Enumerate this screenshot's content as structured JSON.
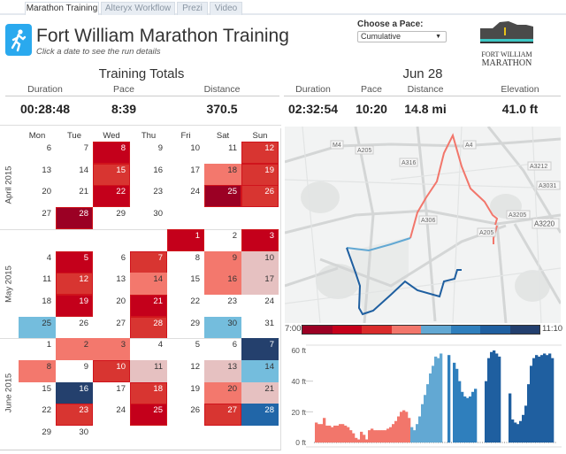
{
  "tabs": [
    {
      "label": "Marathon Training",
      "active": true
    },
    {
      "label": "Alteryx Workflow",
      "active": false
    },
    {
      "label": "Prezi",
      "active": false
    },
    {
      "label": "Video",
      "active": false
    }
  ],
  "header": {
    "icon": "runner-icon",
    "title": "Fort William Marathon Training",
    "subtitle": "Click a date to see the run details",
    "pace_label": "Choose a Pace:",
    "pace_value": "Cumulative",
    "logo_text": [
      "Fort William",
      "Marathon"
    ]
  },
  "totals": {
    "title": "Training Totals",
    "labels": [
      "Duration",
      "Pace",
      "Distance"
    ],
    "values": [
      "00:28:48",
      "8:39",
      "370.5"
    ]
  },
  "run": {
    "title": "Jun 28",
    "labels": [
      "Duration",
      "Pace",
      "Distance",
      "Elevation"
    ],
    "values": [
      "02:32:54",
      "10:20",
      "14.8 mi",
      "41.0 ft"
    ]
  },
  "palette": [
    "#9b0024",
    "#c4001b",
    "#d83531",
    "#f3786d",
    "#e6c1c1",
    "#74bddd",
    "#2166a8",
    "#24406d"
  ],
  "calendar": {
    "weekdays": [
      "Mon",
      "Tue",
      "Wed",
      "Thu",
      "Fri",
      "Sat",
      "Sun"
    ],
    "months": [
      {
        "label": "April 2015",
        "weeks": [
          [
            [
              6,
              null
            ],
            [
              7,
              null
            ],
            [
              8,
              1
            ],
            [
              9,
              null
            ],
            [
              10,
              null
            ],
            [
              11,
              null
            ],
            [
              12,
              2
            ]
          ],
          [
            [
              13,
              null
            ],
            [
              14,
              null
            ],
            [
              15,
              2
            ],
            [
              16,
              null
            ],
            [
              17,
              null
            ],
            [
              18,
              3
            ],
            [
              19,
              2
            ]
          ],
          [
            [
              20,
              null
            ],
            [
              21,
              null
            ],
            [
              22,
              1
            ],
            [
              23,
              null
            ],
            [
              24,
              null
            ],
            [
              25,
              0
            ],
            [
              26,
              2
            ]
          ],
          [
            [
              27,
              null
            ],
            [
              28,
              0
            ],
            [
              29,
              null
            ],
            [
              30,
              null
            ],
            null,
            null,
            null
          ]
        ]
      },
      {
        "label": "May 2015",
        "weeks": [
          [
            null,
            null,
            null,
            null,
            [
              1,
              1
            ],
            [
              2,
              null
            ],
            [
              3,
              1
            ]
          ],
          [
            [
              4,
              null
            ],
            [
              5,
              1
            ],
            [
              6,
              null
            ],
            [
              7,
              2
            ],
            [
              8,
              null
            ],
            [
              9,
              3
            ],
            [
              10,
              4
            ]
          ],
          [
            [
              11,
              null
            ],
            [
              12,
              2
            ],
            [
              13,
              null
            ],
            [
              14,
              3
            ],
            [
              15,
              null
            ],
            [
              16,
              3
            ],
            [
              17,
              4
            ]
          ],
          [
            [
              18,
              null
            ],
            [
              19,
              1
            ],
            [
              20,
              null
            ],
            [
              21,
              1
            ],
            [
              22,
              null
            ],
            [
              23,
              null
            ],
            [
              24,
              null
            ]
          ],
          [
            [
              25,
              5
            ],
            [
              26,
              null
            ],
            [
              27,
              null
            ],
            [
              28,
              2
            ],
            [
              29,
              null
            ],
            [
              30,
              5
            ],
            [
              31,
              null
            ]
          ]
        ]
      },
      {
        "label": "June 2015",
        "weeks": [
          [
            [
              1,
              null
            ],
            [
              2,
              3
            ],
            [
              3,
              3
            ],
            [
              4,
              null
            ],
            [
              5,
              null
            ],
            [
              6,
              null
            ],
            [
              7,
              7
            ]
          ],
          [
            [
              8,
              3
            ],
            [
              9,
              null
            ],
            [
              10,
              2
            ],
            [
              11,
              4
            ],
            [
              12,
              null
            ],
            [
              13,
              4
            ],
            [
              14,
              5
            ]
          ],
          [
            [
              15,
              null
            ],
            [
              16,
              7
            ],
            [
              17,
              null
            ],
            [
              18,
              2
            ],
            [
              19,
              null
            ],
            [
              20,
              3
            ],
            [
              21,
              4
            ]
          ],
          [
            [
              22,
              null
            ],
            [
              23,
              2
            ],
            [
              24,
              null
            ],
            [
              25,
              1
            ],
            [
              26,
              null
            ],
            [
              27,
              2
            ],
            [
              28,
              6
            ]
          ],
          [
            [
              29,
              null
            ],
            [
              30,
              null
            ],
            null,
            null,
            null,
            null,
            null
          ]
        ]
      }
    ]
  },
  "map": {
    "road_labels": [
      "M4",
      "A205",
      "A4",
      "A316",
      "A3212",
      "A3031",
      "A306",
      "A3205",
      "A3220",
      "A205"
    ]
  },
  "pace_legend": {
    "min": "7:00",
    "max": "11:10",
    "colors": [
      "#9b0024",
      "#c5001b",
      "#d92b2b",
      "#f2766b",
      "#62a8d3",
      "#2f7fbd",
      "#1f5fa0",
      "#233f6e"
    ]
  },
  "chart_data": {
    "type": "area",
    "ylabel": "",
    "yticks": [
      "0 ft",
      "20 ft",
      "40 ft",
      "60 ft"
    ],
    "ylim": [
      0,
      60
    ],
    "grid": true,
    "elevation_ft": [
      13,
      12,
      12,
      16,
      11,
      11,
      10,
      11,
      11,
      12,
      12,
      11,
      10,
      8,
      6,
      3,
      2,
      7,
      5,
      2,
      8,
      9,
      8,
      8,
      8,
      8,
      8,
      9,
      10,
      12,
      14,
      17,
      20,
      21,
      20,
      16,
      10,
      8,
      12,
      17,
      25,
      31,
      38,
      45,
      50,
      56,
      55,
      58,
      null,
      null,
      57,
      null,
      52,
      48,
      40,
      33,
      30,
      29,
      30,
      33,
      35,
      null,
      null,
      null,
      40,
      55,
      59,
      60,
      58,
      56,
      null,
      null,
      null,
      32,
      15,
      13,
      12,
      14,
      18,
      24,
      38,
      50,
      55,
      57,
      56,
      57,
      58,
      57,
      58,
      55
    ],
    "pace_band": [
      3,
      3,
      3,
      3,
      3,
      3,
      3,
      3,
      3,
      3,
      3,
      3,
      3,
      3,
      3,
      3,
      3,
      3,
      3,
      3,
      3,
      3,
      3,
      3,
      3,
      3,
      3,
      3,
      3,
      3,
      3,
      3,
      3,
      3,
      3,
      3,
      4,
      4,
      4,
      4,
      4,
      4,
      4,
      4,
      4,
      4,
      4,
      4,
      null,
      null,
      5,
      null,
      5,
      5,
      5,
      5,
      5,
      5,
      5,
      5,
      5,
      null,
      null,
      null,
      6,
      6,
      6,
      6,
      6,
      6,
      null,
      null,
      null,
      6,
      6,
      6,
      6,
      6,
      6,
      6,
      6,
      6,
      6,
      6,
      6,
      6,
      6,
      6,
      6,
      6
    ]
  }
}
